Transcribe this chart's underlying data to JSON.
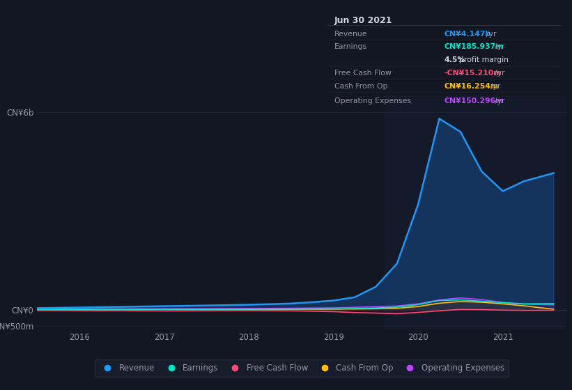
{
  "background_color": "#131722",
  "plot_bg_color": "#131722",
  "title": "Jun 30 2021",
  "tooltip": {
    "date": "Jun 30 2021",
    "revenue": "CN¥4.147b",
    "earnings": "CN¥185.937m",
    "profit_margin": "4.5%",
    "free_cash_flow": "-CN¥15.210m",
    "cash_from_op": "CN¥16.254m",
    "operating_expenses": "CN¥150.296m"
  },
  "x_years": [
    2015.5,
    2015.75,
    2016.0,
    2016.25,
    2016.5,
    2016.75,
    2017.0,
    2017.25,
    2017.5,
    2017.75,
    2018.0,
    2018.25,
    2018.5,
    2018.75,
    2019.0,
    2019.25,
    2019.5,
    2019.75,
    2020.0,
    2020.25,
    2020.5,
    2020.75,
    2021.0,
    2021.25,
    2021.6
  ],
  "revenue": [
    50,
    60,
    70,
    80,
    90,
    100,
    110,
    120,
    130,
    140,
    155,
    170,
    190,
    230,
    280,
    380,
    700,
    1400,
    3200,
    5800,
    5400,
    4200,
    3600,
    3900,
    4147
  ],
  "earnings": [
    5,
    6,
    8,
    10,
    9,
    12,
    14,
    15,
    13,
    16,
    18,
    20,
    22,
    25,
    28,
    38,
    55,
    80,
    160,
    280,
    300,
    260,
    220,
    180,
    185.937
  ],
  "free_cash_flow": [
    -20,
    -22,
    -25,
    -28,
    -24,
    -30,
    -35,
    -32,
    -28,
    -25,
    -22,
    -26,
    -32,
    -42,
    -55,
    -85,
    -100,
    -120,
    -80,
    -30,
    10,
    5,
    -10,
    -18,
    -15.21
  ],
  "cash_from_op": [
    4,
    5,
    6,
    7,
    6,
    8,
    10,
    9,
    8,
    10,
    12,
    14,
    16,
    18,
    20,
    25,
    32,
    45,
    100,
    200,
    250,
    230,
    180,
    120,
    16.254
  ],
  "operating_expenses": [
    15,
    18,
    20,
    22,
    24,
    26,
    28,
    30,
    32,
    35,
    38,
    42,
    46,
    52,
    60,
    75,
    95,
    115,
    180,
    300,
    360,
    310,
    220,
    170,
    150.296
  ],
  "ylim_top": 6500,
  "ylim_bottom": -600,
  "y_ticks_labels": [
    "CN¥6b",
    "CN¥0",
    "-CN¥500m"
  ],
  "y_ticks_values": [
    6000,
    0,
    -500
  ],
  "x_ticks": [
    2016,
    2017,
    2018,
    2019,
    2020,
    2021
  ],
  "x_lim": [
    2015.5,
    2021.75
  ],
  "colors": {
    "revenue": "#2196f3",
    "earnings": "#00e5cc",
    "free_cash_flow": "#ff4976",
    "cash_from_op": "#ffc107",
    "operating_expenses": "#bb44ff"
  },
  "fill_colors": {
    "revenue": "#1565c0",
    "earnings": "#004d40",
    "free_cash_flow": "#880026",
    "cash_from_op": "#5d4000",
    "operating_expenses": "#4a0080"
  },
  "legend_items": [
    "Revenue",
    "Earnings",
    "Free Cash Flow",
    "Cash From Op",
    "Operating Expenses"
  ],
  "legend_colors": [
    "#2196f3",
    "#00e5cc",
    "#ff4976",
    "#ffc107",
    "#bb44ff"
  ],
  "grid_color": "#1e2433",
  "text_color": "#9598a1",
  "highlight_span": [
    2019.6,
    2021.75
  ],
  "highlight_color": "#1a2a4a"
}
